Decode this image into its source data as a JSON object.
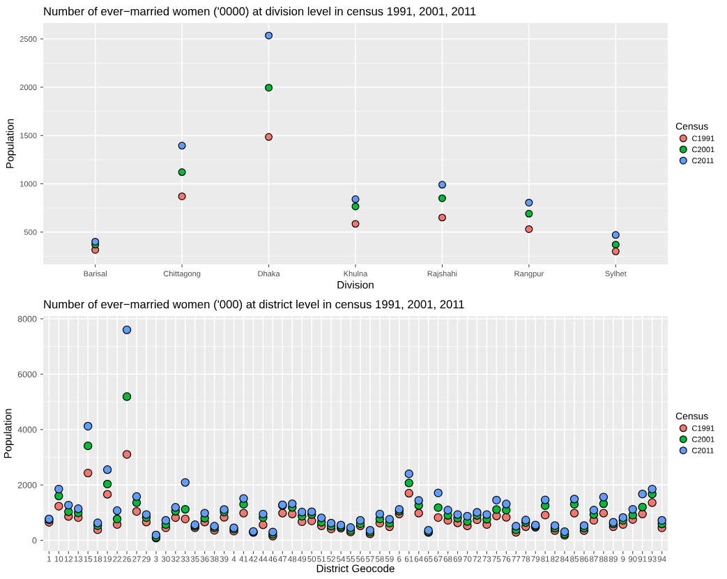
{
  "chart_data": [
    {
      "type": "scatter",
      "title": "Number of ever−married women ('0000) at division level in census 1991, 2001, 2011",
      "xlabel": "Division",
      "ylabel": "Population",
      "legend_title": "Census",
      "legend": "right",
      "grid": true,
      "marker": "circle",
      "categories": [
        "Barisal",
        "Chittagong",
        "Dhaka",
        "Khulna",
        "Rajshahi",
        "Rangpur",
        "Sylhet"
      ],
      "ylim": [
        165,
        2665
      ],
      "yticks": [
        500,
        1000,
        1500,
        2000,
        2500
      ],
      "series": [
        {
          "name": "C1991",
          "color": "#f8766d",
          "values": [
            315,
            870,
            1485,
            585,
            650,
            530,
            300
          ]
        },
        {
          "name": "C2001",
          "color": "#00ba38",
          "values": [
            370,
            1120,
            1995,
            765,
            850,
            690,
            370
          ]
        },
        {
          "name": "C2011",
          "color": "#619cff",
          "values": [
            400,
            1395,
            2535,
            840,
            990,
            805,
            470
          ]
        }
      ]
    },
    {
      "type": "scatter",
      "title": "Number of ever−married women ('000) at district level in census 1991, 2001, 2011",
      "xlabel": "District Geocode",
      "ylabel": "Population",
      "legend_title": "Census",
      "legend": "right",
      "grid": true,
      "marker": "circle",
      "categories": [
        "1",
        "10",
        "12",
        "13",
        "15",
        "18",
        "19",
        "22",
        "26",
        "27",
        "29",
        "3",
        "30",
        "32",
        "33",
        "35",
        "36",
        "38",
        "39",
        "4",
        "41",
        "42",
        "44",
        "46",
        "47",
        "48",
        "49",
        "50",
        "51",
        "52",
        "54",
        "55",
        "56",
        "57",
        "58",
        "59",
        "6",
        "61",
        "64",
        "65",
        "67",
        "68",
        "69",
        "70",
        "72",
        "73",
        "75",
        "76",
        "77",
        "78",
        "79",
        "81",
        "82",
        "84",
        "85",
        "86",
        "87",
        "88",
        "89",
        "9",
        "90",
        "91",
        "93",
        "94"
      ],
      "ylim": [
        -390,
        8100
      ],
      "yticks": [
        0,
        2000,
        4000,
        6000,
        8000
      ],
      "series": [
        {
          "name": "C1991",
          "color": "#f8766d",
          "values": [
            650,
            1230,
            860,
            820,
            2430,
            380,
            1660,
            570,
            3100,
            1040,
            660,
            80,
            450,
            820,
            770,
            450,
            660,
            360,
            830,
            330,
            980,
            280,
            560,
            150,
            980,
            950,
            670,
            700,
            520,
            410,
            440,
            300,
            520,
            230,
            620,
            490,
            950,
            1700,
            980,
            280,
            820,
            720,
            630,
            520,
            740,
            570,
            880,
            830,
            290,
            490,
            470,
            910,
            350,
            180,
            980,
            350,
            720,
            980,
            490,
            570,
            750,
            950,
            1360,
            450
          ]
        },
        {
          "name": "C2001",
          "color": "#00ba38",
          "values": [
            740,
            1600,
            1030,
            990,
            3410,
            530,
            2030,
            770,
            5190,
            1360,
            820,
            110,
            570,
            1050,
            1120,
            510,
            800,
            450,
            1020,
            400,
            1300,
            300,
            820,
            220,
            1250,
            1190,
            870,
            930,
            650,
            510,
            490,
            360,
            600,
            290,
            770,
            620,
            1050,
            2070,
            1260,
            310,
            1180,
            900,
            800,
            680,
            900,
            760,
            1110,
            1090,
            380,
            640,
            510,
            1250,
            440,
            230,
            1300,
            440,
            930,
            1320,
            590,
            720,
            910,
            1200,
            1670,
            590
          ]
        },
        {
          "name": "C2011",
          "color": "#619cff",
          "values": [
            770,
            1850,
            1270,
            1140,
            4120,
            630,
            2550,
            1070,
            7600,
            1580,
            930,
            190,
            720,
            1190,
            2090,
            560,
            980,
            510,
            1110,
            450,
            1510,
            320,
            950,
            300,
            1280,
            1320,
            1020,
            1030,
            810,
            620,
            550,
            460,
            720,
            360,
            950,
            760,
            1120,
            2400,
            1440,
            360,
            1710,
            1090,
            930,
            870,
            1010,
            930,
            1450,
            1310,
            510,
            730,
            550,
            1460,
            530,
            310,
            1490,
            530,
            1090,
            1560,
            650,
            820,
            1120,
            1670,
            1850,
            720
          ]
        }
      ]
    }
  ]
}
